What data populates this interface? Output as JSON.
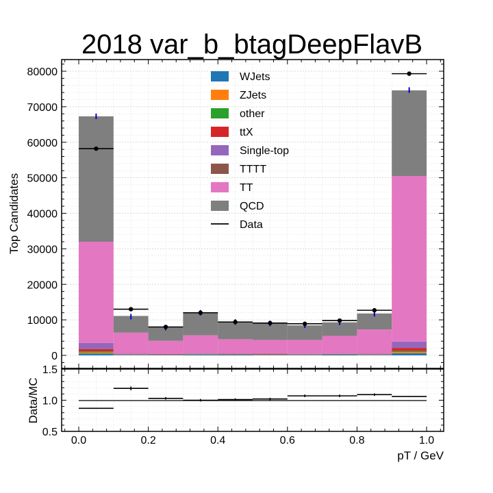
{
  "chart_data": [
    {
      "type": "bar",
      "stacked": true,
      "title": "2018 var_b_btagDeepFlavB",
      "ylabel": "Top Candidates",
      "xlabel": "",
      "bin_edges": [
        0.0,
        0.1,
        0.2,
        0.3,
        0.4,
        0.5,
        0.6,
        0.7,
        0.8,
        0.9,
        1.0
      ],
      "ylim": [
        -2000,
        84000
      ],
      "yticks": [
        0,
        10000,
        20000,
        30000,
        40000,
        50000,
        60000,
        70000,
        80000
      ],
      "grid": true,
      "legend_position": "top-center",
      "series": [
        {
          "name": "WJets",
          "color": "#1f77b4",
          "values": [
            500,
            150,
            100,
            250,
            200,
            150,
            150,
            200,
            150,
            600
          ]
        },
        {
          "name": "ZJets",
          "color": "#ff7f0e",
          "values": [
            300,
            50,
            50,
            50,
            50,
            50,
            50,
            50,
            50,
            300
          ]
        },
        {
          "name": "other",
          "color": "#2ca02c",
          "values": [
            300,
            50,
            50,
            50,
            50,
            50,
            50,
            50,
            50,
            300
          ]
        },
        {
          "name": "ttX",
          "color": "#d62728",
          "values": [
            700,
            100,
            100,
            100,
            150,
            200,
            100,
            100,
            100,
            900
          ]
        },
        {
          "name": "Single-top",
          "color": "#9467bd",
          "values": [
            1700,
            150,
            100,
            100,
            100,
            100,
            100,
            100,
            150,
            1800
          ]
        },
        {
          "name": "TTTT",
          "color": "#8c564b",
          "values": [
            0,
            0,
            0,
            0,
            0,
            0,
            0,
            0,
            0,
            0
          ]
        },
        {
          "name": "TT",
          "color": "#e377c2",
          "values": [
            28500,
            5900,
            3700,
            5100,
            4000,
            3800,
            3900,
            5000,
            6800,
            46600
          ]
        },
        {
          "name": "QCD",
          "color": "#7f7f7f",
          "values": [
            35300,
            4700,
            3900,
            6400,
            4900,
            4700,
            4100,
            3800,
            4500,
            24100
          ]
        }
      ],
      "data_series": {
        "name": "Data",
        "color": "#000000",
        "values": [
          58200,
          13000,
          8000,
          12000,
          9400,
          9100,
          8900,
          9800,
          12700,
          79300
        ]
      },
      "mc_uncertainty_markers": {
        "color": "#0000cc",
        "values": [
          67300,
          10900,
          7800,
          12000,
          9400,
          9000,
          8500,
          9300,
          11700,
          74700
        ]
      }
    },
    {
      "type": "line",
      "ylabel": "Data/MC",
      "xlabel": "pT / GeV",
      "bin_edges": [
        0.0,
        0.1,
        0.2,
        0.3,
        0.4,
        0.5,
        0.6,
        0.7,
        0.8,
        0.9,
        1.0
      ],
      "xlim": [
        -0.05,
        1.05
      ],
      "xticks": [
        0.0,
        0.2,
        0.4,
        0.6,
        0.8,
        1.0
      ],
      "ylim": [
        0.5,
        1.5
      ],
      "yticks": [
        0.5,
        1.0,
        1.5
      ],
      "reference_line": 1.0,
      "grid": true,
      "values": [
        0.87,
        1.19,
        1.03,
        1.0,
        1.01,
        1.02,
        1.07,
        1.07,
        1.09,
        1.06
      ],
      "errors": [
        0.0,
        0.03,
        0.02,
        0.02,
        0.02,
        0.02,
        0.02,
        0.02,
        0.02,
        0.0
      ]
    }
  ],
  "labels": {
    "title": "2018 var_b_btagDeepFlavB",
    "ylabel_top": "Top Candidates",
    "ylabel_bottom": "Data/MC",
    "xlabel": "pT / GeV",
    "top_yticks": [
      "0",
      "10000",
      "20000",
      "30000",
      "40000",
      "50000",
      "60000",
      "70000",
      "80000"
    ],
    "bottom_yticks": [
      "0.5",
      "1.0",
      "1.5"
    ],
    "xticks": [
      "0.0",
      "0.2",
      "0.4",
      "0.6",
      "0.8",
      "1.0"
    ],
    "legend": [
      "WJets",
      "ZJets",
      "other",
      "ttX",
      "Single-top",
      "TTTT",
      "TT",
      "QCD",
      "Data"
    ]
  }
}
